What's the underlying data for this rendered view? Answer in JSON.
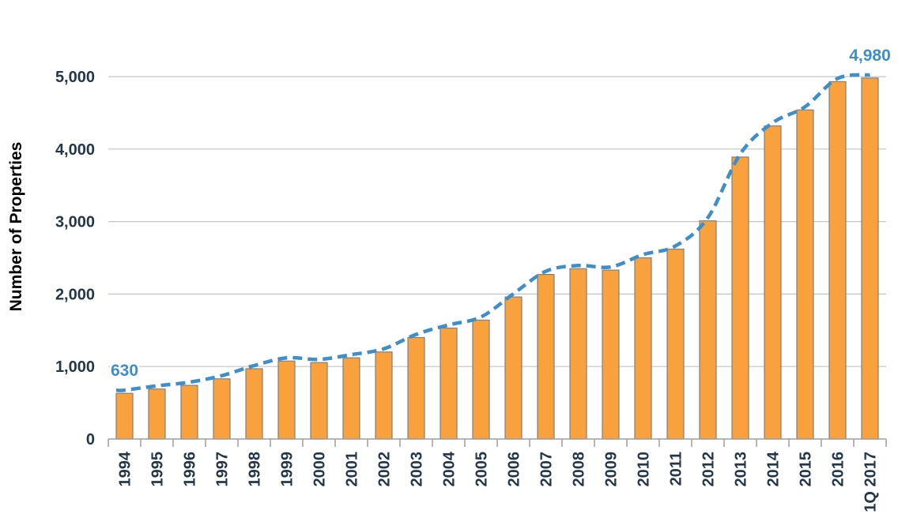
{
  "chart_data": {
    "type": "bar",
    "title": "",
    "xlabel": "",
    "ylabel": "Number of Properties",
    "categories": [
      "1994",
      "1995",
      "1996",
      "1997",
      "1998",
      "1999",
      "2000",
      "2001",
      "2002",
      "2003",
      "2004",
      "2005",
      "2006",
      "2007",
      "2008",
      "2009",
      "2010",
      "2011",
      "2012",
      "2013",
      "2014",
      "2015",
      "2016",
      "1Q 2017"
    ],
    "values": [
      630,
      690,
      740,
      830,
      970,
      1075,
      1055,
      1120,
      1200,
      1400,
      1530,
      1640,
      1960,
      2270,
      2350,
      2330,
      2500,
      2620,
      3010,
      3890,
      4320,
      4540,
      4930,
      4980
    ],
    "trend_series": {
      "name": "trend-line",
      "style": "dashed-smooth",
      "follows_values": true
    },
    "ylim": [
      0,
      5000
    ],
    "ytick_step": 1000,
    "yticks": [
      {
        "value": 0,
        "label": "0"
      },
      {
        "value": 1000,
        "label": "1,000"
      },
      {
        "value": 2000,
        "label": "2,000"
      },
      {
        "value": 3000,
        "label": "3,000"
      },
      {
        "value": 4000,
        "label": "4,000"
      },
      {
        "value": 5000,
        "label": "5,000"
      }
    ],
    "annotations": [
      {
        "text": "630",
        "category": "1994"
      },
      {
        "text": "4,980",
        "category": "1Q 2017"
      }
    ],
    "grid": true,
    "legend": "none",
    "colors": {
      "bar_fill": "#F9A13C",
      "bar_stroke": "#808080",
      "trend_line": "#3E8FC9",
      "annotation_text": "#3E8FC9",
      "axis_text": "#243748",
      "gridline": "#C4C4C4",
      "axis_line": "#9E9E9E"
    }
  }
}
